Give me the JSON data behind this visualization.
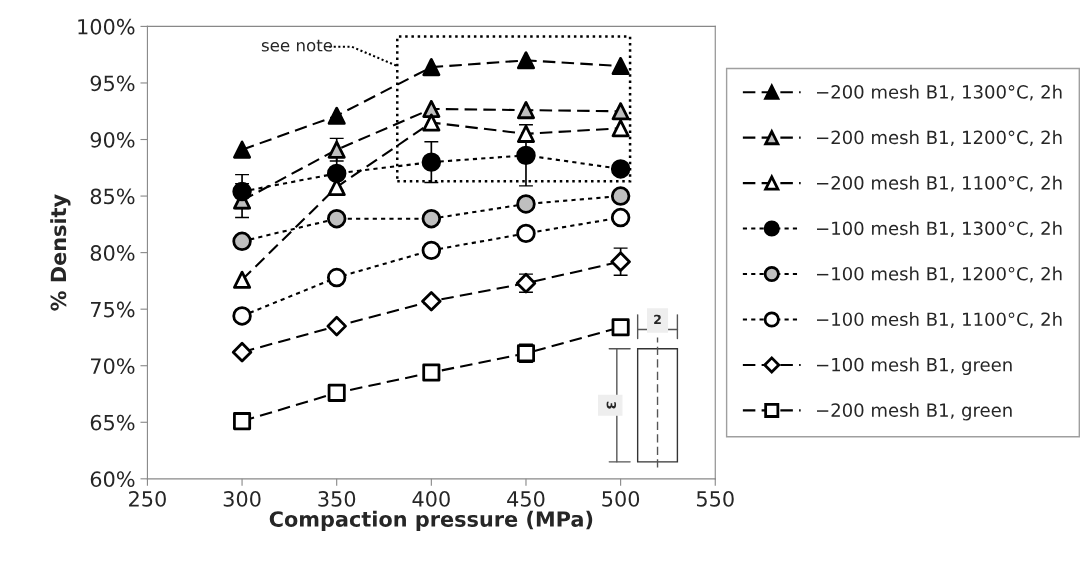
{
  "chart_data": {
    "type": "line",
    "xlabel": "Compaction pressure (MPa)",
    "ylabel": "% Density",
    "x": [
      300,
      350,
      400,
      450,
      500
    ],
    "xlim": [
      250,
      550
    ],
    "xticks": [
      250,
      300,
      350,
      400,
      450,
      500,
      550
    ],
    "ylim": [
      60,
      100
    ],
    "yticks": [
      {
        "value": 60,
        "label": "60%"
      },
      {
        "value": 65,
        "label": "65%"
      },
      {
        "value": 70,
        "label": "70%"
      },
      {
        "value": 75,
        "label": "75%"
      },
      {
        "value": 80,
        "label": "80%"
      },
      {
        "value": 85,
        "label": "85%"
      },
      {
        "value": 90,
        "label": "90%"
      },
      {
        "value": 95,
        "label": "95%"
      },
      {
        "value": 100,
        "label": "100%"
      }
    ],
    "grid": false,
    "legend": "right",
    "series": [
      {
        "name": "−200 mesh B1, 1300°C, 2h",
        "color": "#000000",
        "marker": "triangle",
        "line_style": "dashed",
        "values": [
          89.1,
          92.1,
          96.4,
          97.0,
          96.5
        ]
      },
      {
        "name": "−200 mesh B1, 1200°C, 2h",
        "color": "#bfbfbf",
        "marker": "triangle",
        "line_style": "dashed",
        "values": [
          84.6,
          89.1,
          92.7,
          92.6,
          92.5
        ],
        "errors": [
          1.5,
          1.0,
          null,
          null,
          null
        ]
      },
      {
        "name": "−200 mesh B1, 1100°C, 2h",
        "color": "#ffffff",
        "marker": "triangle",
        "line_style": "dashed",
        "values": [
          77.6,
          85.8,
          91.5,
          90.5,
          91.0
        ]
      },
      {
        "name": "−100 mesh B1, 1300°C, 2h",
        "color": "#000000",
        "marker": "circle",
        "line_style": "dotted",
        "values": [
          85.4,
          87.0,
          88.0,
          88.6,
          87.4
        ],
        "errors": [
          1.5,
          1.5,
          1.8,
          2.7,
          null
        ]
      },
      {
        "name": "−100 mesh B1, 1200°C, 2h",
        "color": "#bfbfbf",
        "marker": "circle",
        "line_style": "dotted",
        "values": [
          81.0,
          83.0,
          83.0,
          84.3,
          85.0
        ]
      },
      {
        "name": "−100 mesh B1, 1100°C, 2h",
        "color": "#ffffff",
        "marker": "circle",
        "line_style": "dotted",
        "values": [
          74.4,
          77.8,
          80.2,
          81.7,
          83.1
        ]
      },
      {
        "name": "−100 mesh B1, green",
        "color": "#ffffff",
        "marker": "diamond",
        "line_style": "dashed",
        "values": [
          71.2,
          73.5,
          75.7,
          77.3,
          79.2
        ],
        "errors": [
          null,
          null,
          null,
          0.8,
          1.2
        ]
      },
      {
        "name": "−200 mesh B1, green",
        "color": "#ffffff",
        "marker": "square",
        "line_style": "dashed",
        "values": [
          65.1,
          67.6,
          69.4,
          71.1,
          73.4
        ],
        "errors": [
          null,
          null,
          0.6,
          0.8,
          null
        ]
      }
    ],
    "annotations": [
      "see note",
      "2",
      "3"
    ]
  }
}
